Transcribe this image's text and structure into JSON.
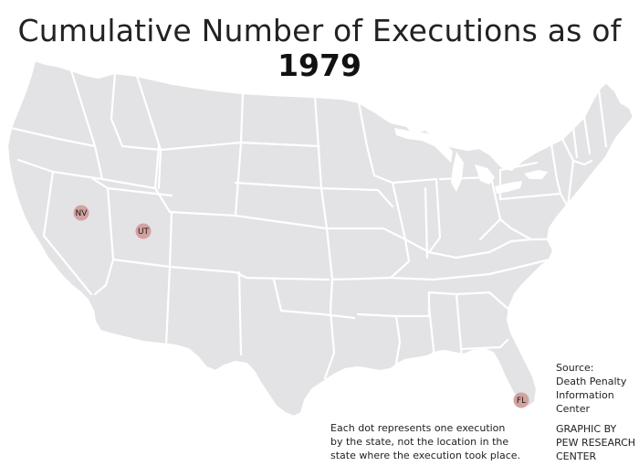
{
  "title": "Cumulative Number of Executions as of",
  "year": "1979",
  "dots": [
    {
      "state": "Nevada",
      "label": "NV",
      "count": 1
    },
    {
      "state": "Utah",
      "label": "UT",
      "count": 1
    },
    {
      "state": "Florida",
      "label": "FL",
      "count": 1
    }
  ],
  "note_lines": [
    "Each dot represents one execution",
    "by the state, not the location in the",
    "state where the execution took place."
  ],
  "source_lines": [
    "Source:",
    "Death Penalty",
    "Information",
    "Center"
  ],
  "credit_lines": [
    "GRAPHIC BY",
    "PEW RESEARCH",
    "CENTER"
  ],
  "colors": {
    "land": "#e3e3e5",
    "borders": "#ffffff",
    "dot": "#d3a2a0",
    "text": "#222222"
  }
}
